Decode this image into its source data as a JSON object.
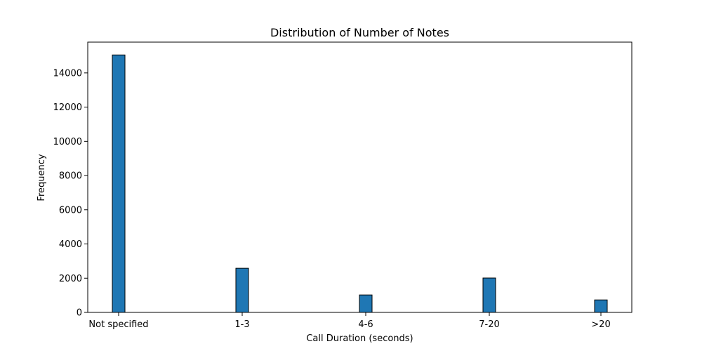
{
  "chart_data": {
    "type": "bar",
    "title": "Distribution of Number of Notes",
    "xlabel": "Call Duration (seconds)",
    "ylabel": "Frequency",
    "categories": [
      "Not specified",
      "1-3",
      "4-6",
      "7-20",
      ">20"
    ],
    "values": [
      15050,
      2580,
      1020,
      2010,
      730
    ],
    "ylim": [
      0,
      15800
    ],
    "yticks": [
      0,
      2000,
      4000,
      6000,
      8000,
      10000,
      12000,
      14000
    ],
    "grid": false,
    "legend": "none",
    "colors": {
      "bar_fill": "#1f77b4",
      "bar_edge": "#000000",
      "axes": "#000000"
    }
  }
}
